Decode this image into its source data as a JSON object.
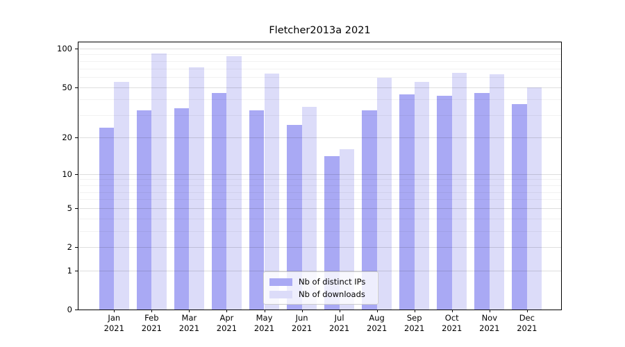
{
  "chart_data": {
    "type": "bar",
    "title": "Fletcher2013a 2021",
    "categories": [
      "Jan 2021",
      "Feb 2021",
      "Mar 2021",
      "Apr 2021",
      "May 2021",
      "Jun 2021",
      "Jul 2021",
      "Aug 2021",
      "Sep 2021",
      "Oct 2021",
      "Nov 2021",
      "Dec 2021"
    ],
    "series": [
      {
        "name": "Nb of distinct IPs",
        "color": "#a9a9f4",
        "values": [
          24,
          33,
          34,
          45,
          33,
          25,
          14,
          33,
          44,
          43,
          45,
          37
        ]
      },
      {
        "name": "Nb of downloads",
        "color": "#dcdcf9",
        "values": [
          55,
          92,
          71,
          87,
          64,
          35,
          16,
          59,
          55,
          65,
          63,
          50
        ]
      }
    ],
    "xlabel": "",
    "ylabel": "",
    "yscale": "log1p",
    "ylim": [
      0,
      111.6
    ],
    "y_tick_labels": [
      "100",
      "50",
      "20",
      "10",
      "5",
      "2",
      "1",
      "0"
    ],
    "y_ticks": [
      100,
      50,
      20,
      10,
      5,
      2,
      1,
      0
    ],
    "y_minor_ticks": [
      3,
      4,
      6,
      7,
      8,
      9,
      30,
      40,
      60,
      70,
      80,
      90
    ],
    "grid": "major+minor, drawn over bars",
    "legend_position": "lower center"
  },
  "colors": {
    "bar_distinct_ips": "#a9a9f4",
    "bar_downloads": "#dcdcf9",
    "grid_major": "rgba(0,0,0,0.13)",
    "grid_minor": "rgba(0,0,0,0.05)",
    "spine": "#000000",
    "legend_border": "#cccccc"
  }
}
